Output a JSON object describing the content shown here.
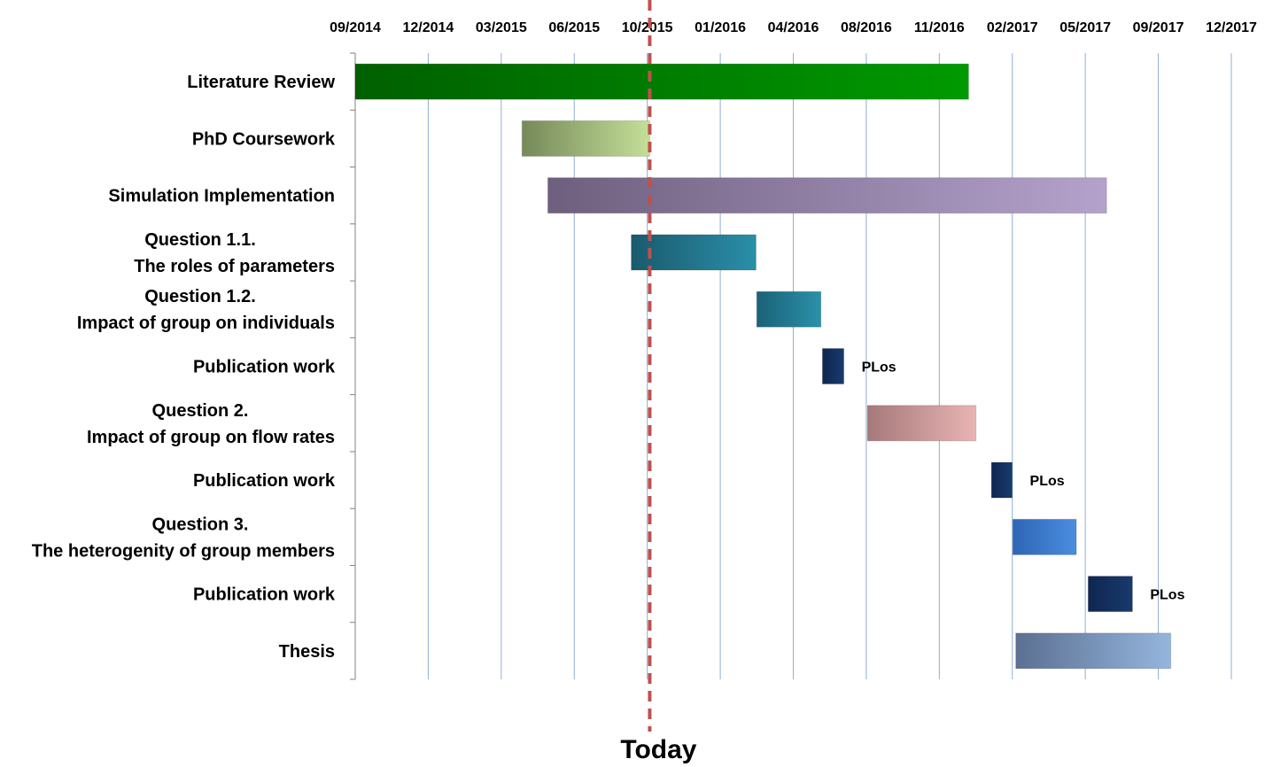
{
  "chart_data": {
    "type": "gantt",
    "x_axis": {
      "position": "top",
      "type": "date",
      "range": [
        "2014-09-01",
        "2017-12-01"
      ],
      "tick_labels": [
        "09/2014",
        "12/2014",
        "03/2015",
        "06/2015",
        "10/2015",
        "01/2016",
        "04/2016",
        "08/2016",
        "11/2016",
        "02/2017",
        "05/2017",
        "09/2017",
        "12/2017"
      ]
    },
    "grid": true,
    "today": {
      "label": "Today",
      "date": "2015-10-05",
      "color": "#c0504d"
    },
    "tasks": [
      {
        "label": [
          "Literature Review"
        ],
        "start": "2014-09-01",
        "end": "2016-12-10",
        "colors": [
          "#006000",
          "#009a00"
        ]
      },
      {
        "label": [
          "PhD Coursework"
        ],
        "start": "2015-04-15",
        "end": "2015-10-05",
        "colors": [
          "#76895a",
          "#c4df98"
        ]
      },
      {
        "label": [
          "Simulation Implementation"
        ],
        "start": "2015-05-20",
        "end": "2017-06-15",
        "colors": [
          "#6e5f7e",
          "#b4a2cc"
        ]
      },
      {
        "label": [
          "Question 1.1.",
          "The roles of parameters"
        ],
        "start": "2015-09-10",
        "end": "2016-02-26",
        "colors": [
          "#1a5a6e",
          "#2a8fa8"
        ]
      },
      {
        "label": [
          "Question 1.2.",
          "Impact of group on individuals"
        ],
        "start": "2016-02-27",
        "end": "2016-05-24",
        "colors": [
          "#1a6278",
          "#2a91a9"
        ]
      },
      {
        "label": [
          "Publication work"
        ],
        "start": "2016-05-26",
        "end": "2016-06-24",
        "colors": [
          "#0f2650",
          "#183a6e"
        ],
        "annotation": "PLos"
      },
      {
        "label": [
          "Question 2.",
          "Impact of group on flow rates"
        ],
        "start": "2016-07-26",
        "end": "2016-12-20",
        "colors": [
          "#a6797a",
          "#e8b4b3"
        ]
      },
      {
        "label": [
          "Publication work"
        ],
        "start": "2017-01-10",
        "end": "2017-02-07",
        "colors": [
          "#0f2650",
          "#183a6e"
        ],
        "annotation": "PLos"
      },
      {
        "label": [
          "Question 3.",
          "The heterogenity of group members"
        ],
        "start": "2017-02-08",
        "end": "2017-05-05",
        "colors": [
          "#2e66b5",
          "#4b8de0"
        ]
      },
      {
        "label": [
          "Publication work"
        ],
        "start": "2017-05-21",
        "end": "2017-07-20",
        "colors": [
          "#0f2650",
          "#183a6e"
        ],
        "annotation": "PLos"
      },
      {
        "label": [
          "Thesis"
        ],
        "start": "2017-02-12",
        "end": "2017-09-10",
        "colors": [
          "#5b7092",
          "#95b5dd"
        ]
      }
    ]
  }
}
